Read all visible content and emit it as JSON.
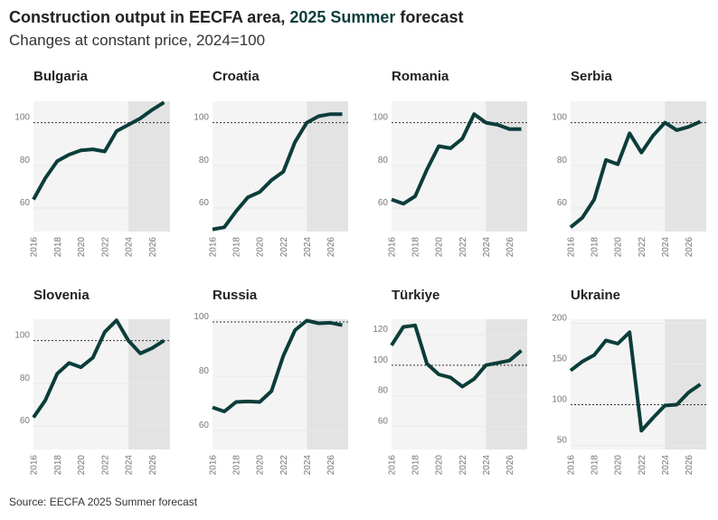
{
  "title": {
    "prefix": "Construction output in EECFA area, ",
    "highlight": "2025 Summer",
    "suffix": " forecast"
  },
  "subtitle": "Changes at constant price, 2024=100",
  "source": "Source: EECFA 2025 Summer forecast",
  "colors": {
    "line": "#0b3d3a",
    "panel_bg": "#f4f4f4",
    "forecast_bg": "#e3e3e3",
    "reference_line": "#333333"
  },
  "chart_data": [
    {
      "type": "line",
      "title": "Bulgaria",
      "x": [
        2016,
        2017,
        2018,
        2019,
        2020,
        2021,
        2022,
        2023,
        2024,
        2025,
        2026,
        2027
      ],
      "values": [
        64,
        74,
        82,
        85,
        87,
        87.5,
        86.5,
        96,
        99,
        102,
        106,
        109.5
      ],
      "ylim": [
        49,
        110
      ],
      "yticks": [
        60,
        80,
        100
      ],
      "forecast_from": 2024,
      "reference": 100
    },
    {
      "type": "line",
      "title": "Croatia",
      "x": [
        2016,
        2017,
        2018,
        2019,
        2020,
        2021,
        2022,
        2023,
        2024,
        2025,
        2026,
        2027
      ],
      "values": [
        50,
        51,
        58.5,
        65,
        67.5,
        73,
        77,
        91,
        100,
        103,
        104,
        104
      ],
      "ylim": [
        49,
        110
      ],
      "yticks": [
        60,
        80,
        100
      ],
      "forecast_from": 2024,
      "reference": 100
    },
    {
      "type": "line",
      "title": "Romania",
      "x": [
        2016,
        2017,
        2018,
        2019,
        2020,
        2021,
        2022,
        2023,
        2024,
        2025,
        2026,
        2027
      ],
      "values": [
        64,
        62,
        65.5,
        78,
        89,
        88,
        92.5,
        104,
        100,
        99,
        97,
        97
      ],
      "ylim": [
        49,
        110
      ],
      "yticks": [
        60,
        80,
        100
      ],
      "forecast_from": 2024,
      "reference": 100
    },
    {
      "type": "line",
      "title": "Serbia",
      "x": [
        2016,
        2017,
        2018,
        2019,
        2020,
        2021,
        2022,
        2023,
        2024,
        2025,
        2026,
        2027
      ],
      "values": [
        51,
        55.5,
        64,
        82.5,
        80.5,
        95,
        86,
        94,
        100,
        96.5,
        98,
        100.5
      ],
      "ylim": [
        49,
        110
      ],
      "yticks": [
        60,
        80,
        100
      ],
      "forecast_from": 2024,
      "reference": 100
    },
    {
      "type": "line",
      "title": "Slovenia",
      "x": [
        2016,
        2017,
        2018,
        2019,
        2020,
        2021,
        2022,
        2023,
        2024,
        2025,
        2026,
        2027
      ],
      "values": [
        64,
        72,
        84.5,
        89.5,
        87.5,
        92,
        104,
        109.5,
        100,
        94,
        96.5,
        100
      ],
      "ylim": [
        49,
        110
      ],
      "yticks": [
        60,
        80,
        100
      ],
      "forecast_from": 2024,
      "reference": 100
    },
    {
      "type": "line",
      "title": "Russia",
      "x": [
        2016,
        2017,
        2018,
        2019,
        2020,
        2021,
        2022,
        2023,
        2024,
        2025,
        2026,
        2027
      ],
      "values": [
        68.5,
        67,
        70.5,
        70.7,
        70.5,
        74.5,
        87.5,
        97,
        100.5,
        99.5,
        99.7,
        98.8
      ],
      "ylim": [
        53,
        101
      ],
      "yticks": [
        60,
        80,
        100
      ],
      "forecast_from": 2024,
      "reference": 100
    },
    {
      "type": "line",
      "title": "Türkiye",
      "x": [
        2016,
        2017,
        2018,
        2019,
        2020,
        2021,
        2022,
        2023,
        2024,
        2025,
        2026,
        2027
      ],
      "values": [
        113,
        125,
        126,
        101,
        94,
        92,
        86,
        91,
        100,
        101.5,
        103,
        109.5
      ],
      "ylim": [
        45,
        130
      ],
      "yticks": [
        60,
        80,
        100,
        120
      ],
      "forecast_from": 2024,
      "reference": 100
    },
    {
      "type": "line",
      "title": "Ukraine",
      "x": [
        2016,
        2017,
        2018,
        2019,
        2020,
        2021,
        2022,
        2023,
        2024,
        2025,
        2026,
        2027
      ],
      "values": [
        142,
        153,
        161,
        179,
        175,
        189,
        68,
        84,
        99,
        100,
        115,
        125
      ],
      "ylim": [
        45,
        205
      ],
      "yticks": [
        50,
        100,
        150,
        200
      ],
      "forecast_from": 2024,
      "reference": 100
    }
  ],
  "x_tick_labels": [
    "2016",
    "2018",
    "2020",
    "2022",
    "2024",
    "2026"
  ]
}
